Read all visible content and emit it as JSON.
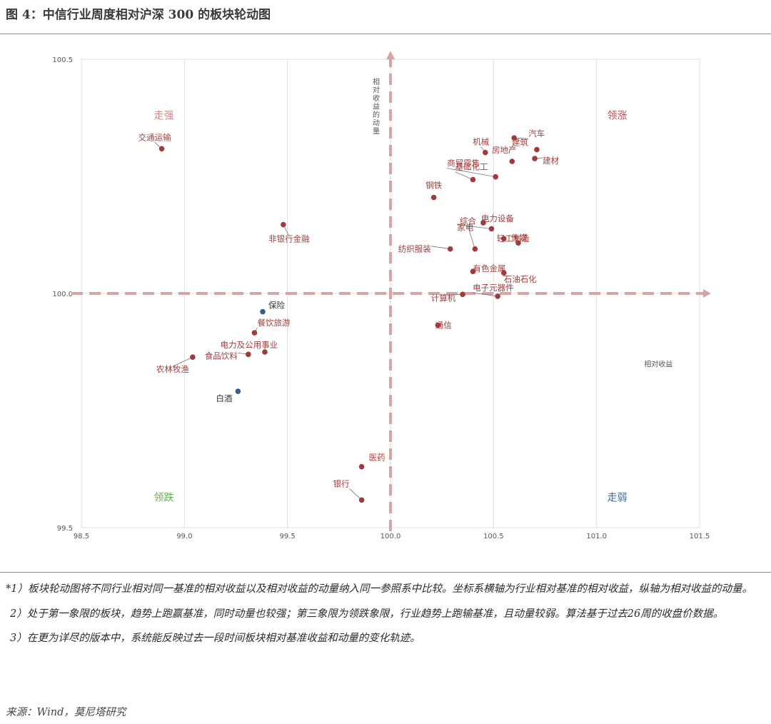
{
  "title": "图 4：中信行业周度相对沪深 300 的板块轮动图",
  "chart_data": {
    "type": "scatter",
    "xlim": [
      98.5,
      101.5
    ],
    "ylim": [
      99.5,
      100.5
    ],
    "x_ticks": [
      "98.5",
      "99.0",
      "99.5",
      "100.0",
      "100.5",
      "101.0",
      "101.5"
    ],
    "y_ticks": [
      "99.5",
      "100.0",
      "100.5"
    ],
    "xlabel": "相对收益",
    "ylabel": "相对收益的动量",
    "grid": true,
    "quadrants": [
      {
        "label": "走强",
        "color": "#d98585"
      },
      {
        "label": "领涨",
        "color": "#b05050"
      },
      {
        "label": "领跌",
        "color": "#6aa84f"
      },
      {
        "label": "走弱",
        "color": "#3d6a9c"
      }
    ],
    "points": [
      {
        "label": "交通运输",
        "x": 98.89,
        "y": 100.309,
        "color": "#a33a3a"
      },
      {
        "label": "非银行金融",
        "x": 99.48,
        "y": 100.147,
        "color": "#a33a3a"
      },
      {
        "label": "保险",
        "x": 99.38,
        "y": 99.961,
        "color": "#2e5f96"
      },
      {
        "label": "餐饮旅游",
        "x": 99.34,
        "y": 99.916,
        "color": "#a33a3a"
      },
      {
        "label": "电力及公用事业",
        "x": 99.39,
        "y": 99.875,
        "color": "#a33a3a"
      },
      {
        "label": "食品饮料",
        "x": 99.31,
        "y": 99.87,
        "color": "#a33a3a"
      },
      {
        "label": "农林牧渔",
        "x": 99.04,
        "y": 99.864,
        "color": "#a33a3a"
      },
      {
        "label": "白酒",
        "x": 99.26,
        "y": 99.791,
        "color": "#2e5f96"
      },
      {
        "label": "医药",
        "x": 99.86,
        "y": 99.63,
        "color": "#a33a3a"
      },
      {
        "label": "银行",
        "x": 99.86,
        "y": 99.559,
        "color": "#a33a3a"
      },
      {
        "label": "机械",
        "x": 100.46,
        "y": 100.301,
        "color": "#a33a3a"
      },
      {
        "label": "汽车",
        "x": 100.6,
        "y": 100.332,
        "color": "#a33a3a"
      },
      {
        "label": "建筑",
        "x": 100.71,
        "y": 100.307,
        "color": "#a33a3a"
      },
      {
        "label": "房地产",
        "x": 100.59,
        "y": 100.282,
        "color": "#a33a3a"
      },
      {
        "label": "建材",
        "x": 100.7,
        "y": 100.288,
        "color": "#a33a3a"
      },
      {
        "label": "商贸零售",
        "x": 100.51,
        "y": 100.249,
        "color": "#a33a3a"
      },
      {
        "label": "基础化工",
        "x": 100.4,
        "y": 100.243,
        "color": "#a33a3a"
      },
      {
        "label": "钢铁",
        "x": 100.21,
        "y": 100.205,
        "color": "#a33a3a"
      },
      {
        "label": "电力设备",
        "x": 100.45,
        "y": 100.151,
        "color": "#a33a3a"
      },
      {
        "label": "家电",
        "x": 100.49,
        "y": 100.138,
        "color": "#a33a3a"
      },
      {
        "label": "轻工制造",
        "x": 100.55,
        "y": 100.117,
        "color": "#a33a3a"
      },
      {
        "label": "传媒",
        "x": 100.62,
        "y": 100.108,
        "color": "#a33a3a"
      },
      {
        "label": "纺织服装",
        "x": 100.29,
        "y": 100.095,
        "color": "#a33a3a"
      },
      {
        "label": "综合",
        "x": 100.41,
        "y": 100.095,
        "color": "#a33a3a"
      },
      {
        "label": "有色金属",
        "x": 100.4,
        "y": 100.047,
        "color": "#a33a3a"
      },
      {
        "label": "石油石化",
        "x": 100.55,
        "y": 100.044,
        "color": "#a33a3a"
      },
      {
        "label": "电子元器件",
        "x": 100.52,
        "y": 99.994,
        "color": "#a33a3a"
      },
      {
        "label": "计算机",
        "x": 100.35,
        "y": 99.998,
        "color": "#a33a3a"
      },
      {
        "label": "通信",
        "x": 100.23,
        "y": 99.932,
        "color": "#a33a3a"
      }
    ]
  },
  "notes": [
    "*1）板块轮动图将不同行业相对同一基准的相对收益以及相对收益的动量纳入同一参照系中比较。坐标系横轴为行业相对基准的相对收益，纵轴为相对收益的动量。",
    "2）处于第一象限的板块，趋势上跑赢基准，同时动量也较强；第三象限为领跌象限，行业趋势上跑输基准，且动量较弱。算法基于过去26周的收盘价数据。",
    "3）在更为详尽的版本中，系统能反映过去一段时间板块相对基准收益和动量的变化轨迹。"
  ],
  "source": "来源：Wind，莫尼塔研究"
}
